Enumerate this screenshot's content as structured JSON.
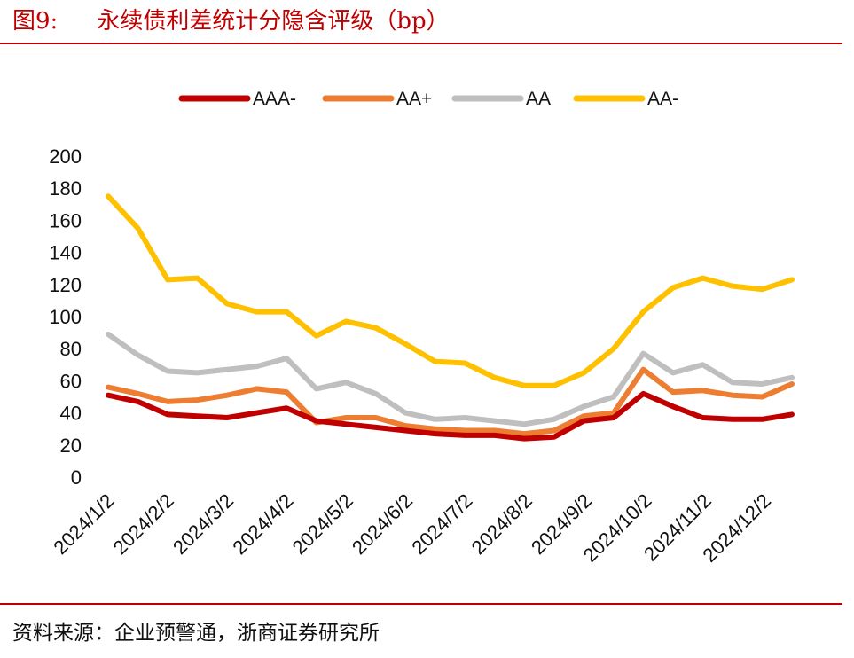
{
  "figure": {
    "number": "图9:",
    "title": "永续债利差统计分隐含评级（bp）",
    "source": "资料来源：企业预警通，浙商证券研究所"
  },
  "chart_data": {
    "type": "line",
    "title": "永续债利差统计分隐含评级（bp）",
    "xlabel": "",
    "ylabel": "",
    "ylim": [
      0,
      200
    ],
    "yticks": [
      "0",
      "20",
      "40",
      "60",
      "80",
      "100",
      "120",
      "140",
      "160",
      "180",
      "200"
    ],
    "xticks": [
      "2024/1/2",
      "2024/2/2",
      "2024/3/2",
      "2024/4/2",
      "2024/5/2",
      "2024/6/2",
      "2024/7/2",
      "2024/8/2",
      "2024/9/2",
      "2024/10/2",
      "2024/11/2",
      "2024/12/2"
    ],
    "x": [
      "2024/1/2",
      "2024/1/15",
      "2024/2/2",
      "2024/2/15",
      "2024/3/2",
      "2024/3/15",
      "2024/4/2",
      "2024/4/15",
      "2024/5/2",
      "2024/5/15",
      "2024/6/2",
      "2024/6/15",
      "2024/7/2",
      "2024/7/15",
      "2024/8/2",
      "2024/8/15",
      "2024/9/2",
      "2024/9/15",
      "2024/10/2",
      "2024/10/15",
      "2024/11/2",
      "2024/11/15",
      "2024/12/2",
      "2024/12/15"
    ],
    "legend_position": "top",
    "series": [
      {
        "name": "AAA-",
        "color": "#c00000",
        "values": [
          51,
          47,
          39,
          38,
          37,
          40,
          43,
          35,
          33,
          31,
          29,
          27,
          26,
          26,
          24,
          25,
          35,
          37,
          52,
          44,
          37,
          36,
          36,
          39
        ]
      },
      {
        "name": "AA+",
        "color": "#ed7d31",
        "values": [
          56,
          52,
          47,
          48,
          51,
          55,
          53,
          34,
          37,
          37,
          32,
          30,
          29,
          29,
          27,
          29,
          38,
          40,
          67,
          53,
          54,
          51,
          50,
          58
        ]
      },
      {
        "name": "AA",
        "color": "#bfbfbf",
        "values": [
          89,
          76,
          66,
          65,
          67,
          69,
          74,
          55,
          59,
          52,
          40,
          36,
          37,
          35,
          33,
          36,
          44,
          50,
          77,
          65,
          70,
          59,
          58,
          62
        ]
      },
      {
        "name": "AA-",
        "color": "#ffc000",
        "values": [
          175,
          155,
          123,
          124,
          108,
          103,
          103,
          88,
          97,
          93,
          83,
          72,
          71,
          62,
          57,
          57,
          65,
          80,
          103,
          118,
          124,
          119,
          117,
          123
        ]
      }
    ]
  }
}
